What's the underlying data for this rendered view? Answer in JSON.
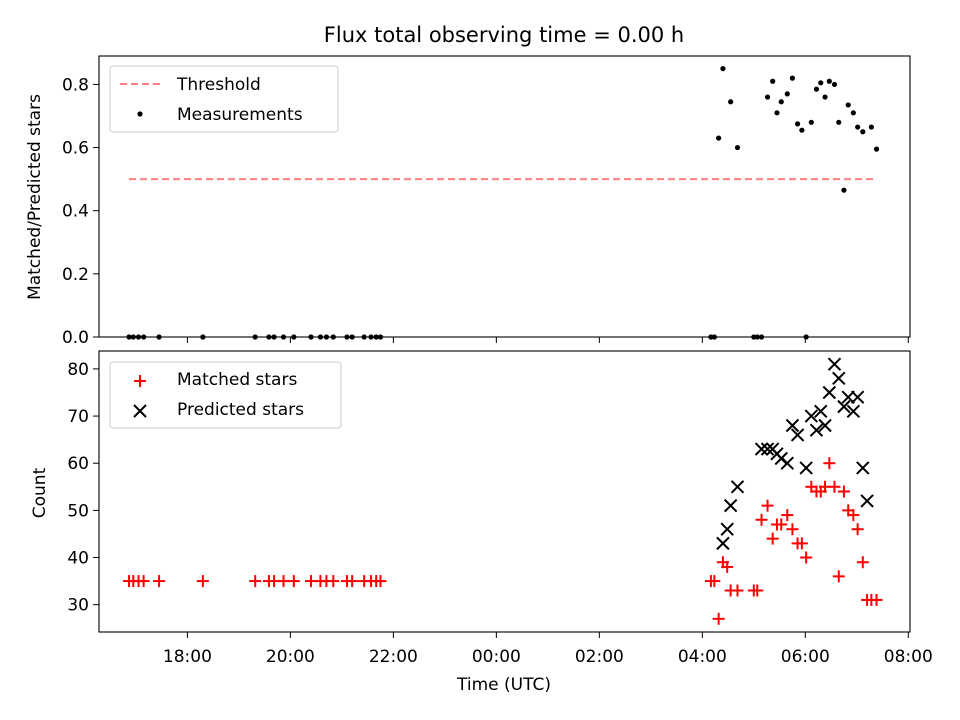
{
  "chart_data": [
    {
      "type": "scatter",
      "title": "Flux total observing time = 0.00 h",
      "xlabel": "",
      "ylabel": "Matched/Predicted stars",
      "xlim": [
        "16:17",
        "32:02"
      ],
      "ylim": [
        0.0,
        0.89
      ],
      "yticks": [
        0.0,
        0.2,
        0.4,
        0.6,
        0.8
      ],
      "ytick_labels": [
        "0.0",
        "0.2",
        "0.4",
        "0.6",
        "0.8"
      ],
      "legend": {
        "position": "top-left",
        "entries": [
          "Threshold",
          "Measurements"
        ]
      },
      "threshold": {
        "name": "Threshold",
        "y": 0.5,
        "x_range": [
          "16:52",
          "31:22"
        ],
        "color": "#ff7f7f",
        "style": "dashed"
      },
      "series": [
        {
          "name": "Measurements",
          "color": "#000000",
          "marker": "dot",
          "x": [
            "16:52",
            "16:57",
            "17:03",
            "17:09",
            "17:27",
            "18:18",
            "19:19",
            "19:35",
            "19:41",
            "19:52",
            "20:04",
            "20:24",
            "20:35",
            "20:42",
            "20:50",
            "21:06",
            "21:12",
            "21:26",
            "21:34",
            "21:40",
            "21:45",
            "28:10",
            "28:14",
            "28:19",
            "28:24",
            "28:33",
            "28:41",
            "29:00",
            "29:04",
            "29:09",
            "29:16",
            "29:22",
            "29:27",
            "29:32",
            "29:39",
            "29:45",
            "29:51",
            "29:56",
            "30:01",
            "30:07",
            "30:13",
            "30:18",
            "30:23",
            "30:28",
            "30:34",
            "30:39",
            "30:45",
            "30:50",
            "30:56",
            "31:01",
            "31:07",
            "31:17",
            "31:23"
          ],
          "y": [
            0,
            0,
            0,
            0,
            0,
            0,
            0,
            0,
            0,
            0,
            0,
            0,
            0,
            0,
            0,
            0,
            0,
            0,
            0,
            0,
            0,
            0,
            0,
            0.63,
            0.85,
            0.745,
            0.6,
            0,
            0,
            0,
            0.76,
            0.81,
            0.71,
            0.745,
            0.77,
            0.82,
            0.675,
            0.655,
            0,
            0.68,
            0.785,
            0.805,
            0.76,
            0.81,
            0.8,
            0.68,
            0.465,
            0.735,
            0.71,
            0.665,
            0.65,
            0.665,
            0.595
          ]
        }
      ]
    },
    {
      "type": "scatter",
      "title": "",
      "xlabel": "Time (UTC)",
      "ylabel": "Count",
      "xlim": [
        "16:17",
        "32:02"
      ],
      "ylim": [
        24.2,
        83.8
      ],
      "yticks": [
        30,
        40,
        50,
        60,
        70,
        80
      ],
      "ytick_labels": [
        "30",
        "40",
        "50",
        "60",
        "70",
        "80"
      ],
      "xticks": [
        "18:00",
        "20:00",
        "22:00",
        "00:00",
        "02:00",
        "04:00",
        "06:00",
        "08:00"
      ],
      "legend": {
        "position": "top-left",
        "entries": [
          "Matched stars",
          "Predicted stars"
        ]
      },
      "series": [
        {
          "name": "Matched stars",
          "color": "#ff0000",
          "marker": "plus",
          "x": [
            "16:52",
            "16:57",
            "17:03",
            "17:09",
            "17:27",
            "18:18",
            "19:19",
            "19:35",
            "19:41",
            "19:52",
            "20:04",
            "20:24",
            "20:35",
            "20:42",
            "20:50",
            "21:06",
            "21:12",
            "21:26",
            "21:34",
            "21:40",
            "21:45",
            "28:10",
            "28:14",
            "28:19",
            "28:24",
            "28:29",
            "28:33",
            "28:41",
            "29:00",
            "29:04",
            "29:09",
            "29:16",
            "29:22",
            "29:27",
            "29:32",
            "29:39",
            "29:45",
            "29:51",
            "29:56",
            "30:01",
            "30:07",
            "30:13",
            "30:18",
            "30:23",
            "30:28",
            "30:34",
            "30:39",
            "30:45",
            "30:50",
            "30:56",
            "31:01",
            "31:07",
            "31:12",
            "31:17",
            "31:23"
          ],
          "y": [
            35,
            35,
            35,
            35,
            35,
            35,
            35,
            35,
            35,
            35,
            35,
            35,
            35,
            35,
            35,
            35,
            35,
            35,
            35,
            35,
            35,
            35,
            35,
            27,
            39,
            38,
            33,
            33,
            33,
            33,
            48,
            51,
            44,
            47,
            47,
            49,
            46,
            43,
            43,
            40,
            55,
            54,
            54,
            55,
            60,
            55,
            36,
            54,
            50,
            49,
            46,
            39,
            31,
            31,
            31
          ]
        },
        {
          "name": "Predicted stars",
          "color": "#000000",
          "marker": "x",
          "x": [
            "28:24",
            "28:29",
            "28:33",
            "28:41",
            "29:09",
            "29:16",
            "29:22",
            "29:27",
            "29:32",
            "29:39",
            "29:45",
            "29:51",
            "30:01",
            "30:07",
            "30:13",
            "30:18",
            "30:23",
            "30:28",
            "30:34",
            "30:39",
            "30:45",
            "30:50",
            "30:56",
            "31:01",
            "31:07",
            "31:12"
          ],
          "y": [
            43,
            46,
            51,
            55,
            63,
            63,
            63,
            62,
            61,
            60,
            68,
            66,
            59,
            70,
            67,
            71,
            68,
            75,
            81,
            78,
            72,
            74,
            71,
            74,
            59,
            52
          ]
        }
      ]
    }
  ]
}
